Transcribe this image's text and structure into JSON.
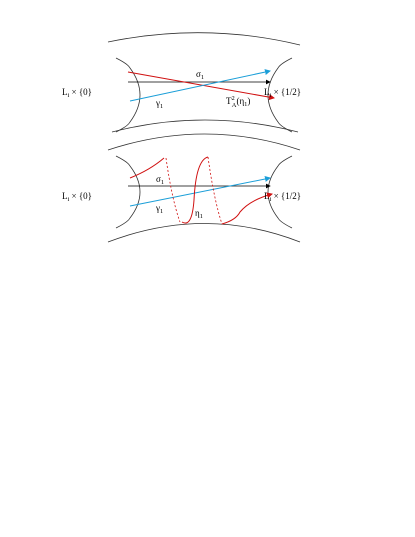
{
  "figure": {
    "top": {
      "left_label": {
        "base": "L",
        "sub": "i",
        "rest": " × {0}"
      },
      "right_label": {
        "base": "L",
        "sub": "i",
        "rest": " × {1/2}"
      },
      "sigma": {
        "base": "σ",
        "sub": "1"
      },
      "gamma": {
        "base": "γ",
        "sub": "1"
      },
      "twist": {
        "base": "T",
        "sup": "2",
        "sub": "A",
        "rest": "(η",
        "sub2": "1",
        "end": ")"
      }
    },
    "bottom": {
      "left_label": {
        "base": "L",
        "sub": "i",
        "rest": " × {0}"
      },
      "right_label": {
        "base": "L",
        "sub": "i",
        "rest": " × {1/2}"
      },
      "sigma": {
        "base": "σ",
        "sub": "1"
      },
      "gamma": {
        "base": "γ",
        "sub": "1"
      },
      "eta": {
        "base": "η",
        "sub": "1"
      }
    }
  }
}
